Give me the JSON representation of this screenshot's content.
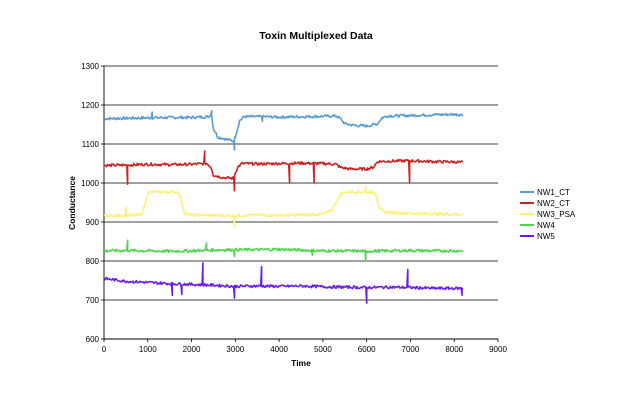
{
  "chart_data": {
    "type": "line",
    "title": "Toxin Multiplexed Data",
    "xlabel": "Time",
    "ylabel": "Conductance",
    "xlim": [
      0,
      9000
    ],
    "ylim": [
      600,
      1300
    ],
    "x_ticks": [
      0,
      1000,
      2000,
      3000,
      4000,
      5000,
      6000,
      7000,
      8000,
      9000
    ],
    "y_ticks": [
      600,
      700,
      800,
      900,
      1000,
      1100,
      1200,
      1300
    ],
    "grid": "horizontal",
    "legend_position": "right",
    "series": [
      {
        "name": "NW1_CT",
        "color": "#5B9BD5",
        "points": [
          [
            0,
            1165
          ],
          [
            500,
            1166
          ],
          [
            1000,
            1167
          ],
          [
            1500,
            1168
          ],
          [
            2000,
            1168
          ],
          [
            2400,
            1170
          ],
          [
            2450,
            1180
          ],
          [
            2500,
            1140
          ],
          [
            2600,
            1118
          ],
          [
            2800,
            1112
          ],
          [
            2950,
            1108
          ],
          [
            3000,
            1120
          ],
          [
            3100,
            1160
          ],
          [
            3200,
            1170
          ],
          [
            3600,
            1170
          ],
          [
            4000,
            1169
          ],
          [
            4500,
            1170
          ],
          [
            5000,
            1171
          ],
          [
            5300,
            1172
          ],
          [
            5400,
            1165
          ],
          [
            5500,
            1152
          ],
          [
            5700,
            1148
          ],
          [
            6000,
            1146
          ],
          [
            6250,
            1152
          ],
          [
            6350,
            1168
          ],
          [
            6500,
            1172
          ],
          [
            7000,
            1173
          ],
          [
            7500,
            1175
          ],
          [
            8000,
            1176
          ],
          [
            8200,
            1175
          ]
        ],
        "spikes": [
          [
            1100,
            1182
          ],
          [
            2450,
            1185
          ],
          [
            2980,
            1085
          ],
          [
            3610,
            1158
          ]
        ]
      },
      {
        "name": "NW2_CT",
        "color": "#CC2222",
        "points": [
          [
            0,
            1045
          ],
          [
            500,
            1046
          ],
          [
            1000,
            1048
          ],
          [
            1500,
            1047
          ],
          [
            2000,
            1048
          ],
          [
            2350,
            1050
          ],
          [
            2450,
            1040
          ],
          [
            2500,
            1020
          ],
          [
            2700,
            1014
          ],
          [
            2950,
            1012
          ],
          [
            3050,
            1040
          ],
          [
            3150,
            1050
          ],
          [
            3600,
            1049
          ],
          [
            4000,
            1050
          ],
          [
            4500,
            1051
          ],
          [
            5000,
            1050
          ],
          [
            5300,
            1048
          ],
          [
            5400,
            1040
          ],
          [
            5600,
            1036
          ],
          [
            6000,
            1036
          ],
          [
            6150,
            1040
          ],
          [
            6250,
            1055
          ],
          [
            6500,
            1056
          ],
          [
            7000,
            1057
          ],
          [
            7500,
            1055
          ],
          [
            8000,
            1054
          ],
          [
            8200,
            1053
          ]
        ],
        "spikes": [
          [
            530,
            997
          ],
          [
            2300,
            1082
          ],
          [
            2980,
            980
          ],
          [
            4230,
            1000
          ],
          [
            4800,
            1000
          ],
          [
            6980,
            1000
          ]
        ]
      },
      {
        "name": "NW3_PSA",
        "color": "#FFF176",
        "points": [
          [
            0,
            915
          ],
          [
            500,
            917
          ],
          [
            850,
            918
          ],
          [
            950,
            950
          ],
          [
            1000,
            975
          ],
          [
            1100,
            977
          ],
          [
            1500,
            977
          ],
          [
            1700,
            977
          ],
          [
            1800,
            940
          ],
          [
            1850,
            920
          ],
          [
            2000,
            918
          ],
          [
            2500,
            917
          ],
          [
            3000,
            916
          ],
          [
            3500,
            918
          ],
          [
            4000,
            917
          ],
          [
            4500,
            918
          ],
          [
            5000,
            920
          ],
          [
            5200,
            930
          ],
          [
            5400,
            972
          ],
          [
            5500,
            977
          ],
          [
            6000,
            977
          ],
          [
            6200,
            975
          ],
          [
            6300,
            935
          ],
          [
            6400,
            925
          ],
          [
            7000,
            922
          ],
          [
            7500,
            921
          ],
          [
            8000,
            920
          ],
          [
            8200,
            920
          ]
        ],
        "spikes": [
          [
            500,
            938
          ],
          [
            2970,
            890
          ],
          [
            5970,
            990
          ]
        ]
      },
      {
        "name": "NW4",
        "color": "#4CD64C",
        "points": [
          [
            0,
            826
          ],
          [
            500,
            827
          ],
          [
            1000,
            826
          ],
          [
            1500,
            825
          ],
          [
            2000,
            826
          ],
          [
            2500,
            828
          ],
          [
            3000,
            829
          ],
          [
            3500,
            829
          ],
          [
            4000,
            830
          ],
          [
            4500,
            828
          ],
          [
            5000,
            826
          ],
          [
            5500,
            826
          ],
          [
            6000,
            825
          ],
          [
            6500,
            826
          ],
          [
            7000,
            827
          ],
          [
            7500,
            826
          ],
          [
            8000,
            826
          ],
          [
            8200,
            826
          ]
        ],
        "spikes": [
          [
            530,
            853
          ],
          [
            2340,
            846
          ],
          [
            2970,
            812
          ],
          [
            4750,
            815
          ],
          [
            5970,
            800
          ]
        ]
      },
      {
        "name": "NW5",
        "color": "#6A1FE6",
        "points": [
          [
            0,
            755
          ],
          [
            500,
            748
          ],
          [
            1000,
            745
          ],
          [
            1500,
            742
          ],
          [
            2000,
            740
          ],
          [
            2500,
            738
          ],
          [
            3000,
            735
          ],
          [
            3500,
            736
          ],
          [
            4000,
            735
          ],
          [
            4500,
            736
          ],
          [
            5000,
            734
          ],
          [
            5500,
            733
          ],
          [
            6000,
            732
          ],
          [
            6500,
            733
          ],
          [
            7000,
            732
          ],
          [
            7500,
            730
          ],
          [
            8000,
            730
          ],
          [
            8200,
            730
          ]
        ],
        "spikes": [
          [
            1550,
            712
          ],
          [
            1780,
            714
          ],
          [
            2250,
            795
          ],
          [
            2970,
            705
          ],
          [
            3600,
            786
          ],
          [
            5990,
            692
          ],
          [
            6930,
            778
          ],
          [
            8180,
            712
          ]
        ]
      }
    ]
  }
}
